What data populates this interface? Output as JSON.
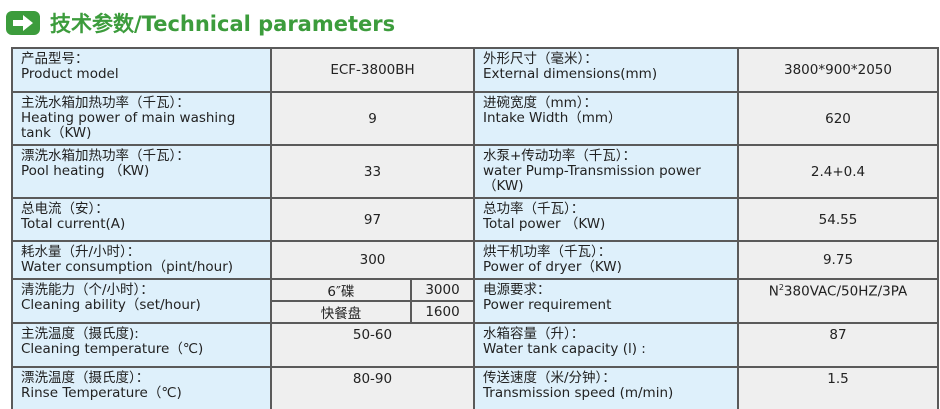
{
  "title": "技术参数/Technical parameters",
  "icon": "arrow-right-icon",
  "colors": {
    "accent": "#3c9c3c",
    "label_bg": "#def0fb",
    "value_bg": "#efefef"
  },
  "rows": [
    {
      "l1_zh": "产品型号：",
      "l1_en": "Product model",
      "v1": "ECF-3800BH",
      "l2_zh": "外形尺寸（毫米）：",
      "l2_en": "External dimensions(mm)",
      "v2": "3800*900*2050"
    },
    {
      "l1_zh": "主洗水箱加热功率（千瓦）：",
      "l1_en": "Heating power of main washing tank（KW)",
      "v1": "9",
      "l2_zh": "进碗宽度（mm）：",
      "l2_en": "Intake Width（mm）",
      "v2": "620"
    },
    {
      "l1_zh": "漂洗水箱加热功率（千瓦）：",
      "l1_en": "Pool heating （KW)",
      "v1": "33",
      "l2_zh": "水泵+传动功率（千瓦）：",
      "l2_en": "water Pump-Transmission power（KW)",
      "v2": "2.4+0.4"
    },
    {
      "l1_zh": "总电流（安）：",
      "l1_en": "Total current(A)",
      "v1": "97",
      "l2_zh": "总功率（千瓦）：",
      "l2_en": "Total power （KW)",
      "v2": "54.55"
    },
    {
      "l1_zh": "耗水量（升/小时）：",
      "l1_en": "Water consumption（pint/hour)",
      "v1": "300",
      "l2_zh": "烘干机功率（千瓦）：",
      "l2_en": "Power of dryer（KW)",
      "v2": "9.75"
    },
    {
      "l1_zh": "清洗能力（个/小时）：",
      "l1_en": "Cleaning ability（set/hour)",
      "sub": [
        {
          "name": "6″碟",
          "value": "3000"
        },
        {
          "name": "快餐盘",
          "value": "1600"
        }
      ],
      "l2_zh": "电源要求：",
      "l2_en": "Power requirement",
      "v2_pre": "N",
      "v2_sup": "2",
      "v2": "380VAC/50HZ/3PA"
    },
    {
      "l1_zh": "主洗温度（摄氏度):",
      "l1_en": "Cleaning temperature（℃)",
      "v1": "50-60",
      "l2_zh": "水箱容量（升）：",
      "l2_en": "Water tank capacity (l) :",
      "v2": "87"
    },
    {
      "l1_zh": "漂洗温度（摄氏度）：",
      "l1_en": "Rinse Temperature（℃)",
      "v1": "80-90",
      "l2_zh": "传送速度（米/分钟）：",
      "l2_en": "Transmission speed (m/min)",
      "v2": "1.5"
    }
  ]
}
